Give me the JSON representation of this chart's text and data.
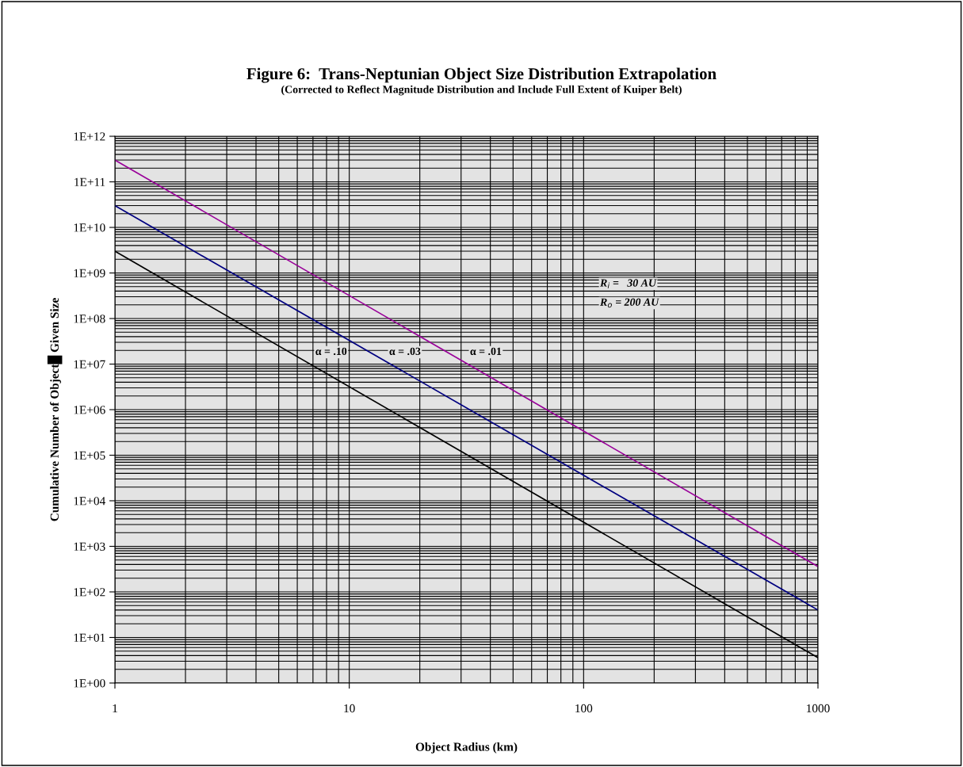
{
  "chart_data": {
    "type": "line",
    "title": "Figure 6:  Trans-Neptunian Object Size Distribution Extrapolation",
    "subtitle": "(Corrected to Reflect Magnitude Distribution and Include Full Extent of Kuiper Belt)",
    "xlabel": "Object Radius (km)",
    "ylabel": "Cumulative Number of Object█ Given Size",
    "x": [
      1,
      1000
    ],
    "series": [
      {
        "color": "#990099",
        "values": [
          300000000000,
          360
        ]
      },
      {
        "color": "#000080",
        "values": [
          30000000000,
          40
        ]
      },
      {
        "color": "#000000",
        "values": [
          3000000000,
          3.6
        ]
      }
    ],
    "log": "xy",
    "xlim": [
      1,
      1000
    ],
    "xticks": [
      1,
      10,
      100,
      1000
    ],
    "ylim": [
      1,
      1000000000000
    ],
    "yticks": [
      {
        "value": 1,
        "label": "1E+00"
      },
      {
        "value": 10,
        "label": "1E+01"
      },
      {
        "value": 100,
        "label": "1E+02"
      },
      {
        "value": 1000,
        "label": "1E+03"
      },
      {
        "value": 10000,
        "label": "1E+04"
      },
      {
        "value": 100000,
        "label": "1E+05"
      },
      {
        "value": 1000000,
        "label": "1E+06"
      },
      {
        "value": 10000000,
        "label": "1E+07"
      },
      {
        "value": 100000000,
        "label": "1E+08"
      },
      {
        "value": 1000000000,
        "label": "1E+09"
      },
      {
        "value": 10000000000,
        "label": "1E+10"
      },
      {
        "value": 100000000000,
        "label": "1E+11"
      },
      {
        "value": 1000000000000,
        "label": "1E+12"
      }
    ],
    "grid": true,
    "marker": "none",
    "line_style": "solid",
    "legend": false,
    "annotations": [
      "α = .10",
      "α = .03",
      "α = .01",
      "R$_{i}$ =   30 AU",
      "R$_{o}$ = 200 AU"
    ]
  }
}
